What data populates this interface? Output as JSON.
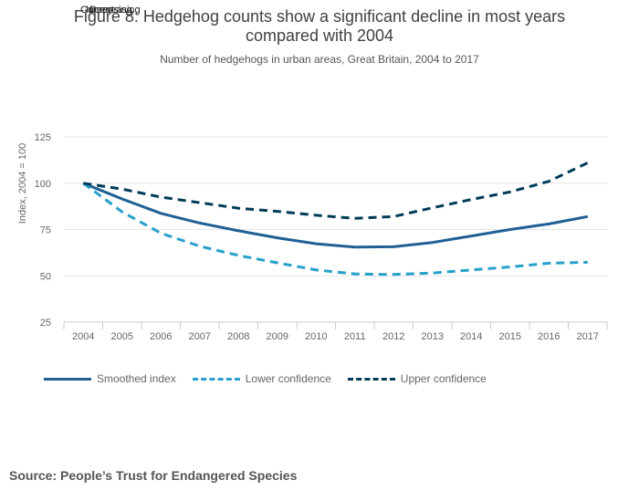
{
  "overlay_texts": [
    "Current",
    "Increasing",
    "Decreasing"
  ],
  "header": {
    "title_line1": "Figure 8: Hedgehog counts show a significant decline in most years",
    "title_line2": "compared with 2004",
    "subtitle": "Number of hedgehogs in urban areas, Great Britain, 2004 to 2017"
  },
  "chart_data": {
    "type": "line",
    "ylabel": "Index, 2004 = 100",
    "xlabel": "",
    "ylim": [
      25,
      125
    ],
    "yticks": [
      25,
      50,
      75,
      100,
      125
    ],
    "x": [
      "2004",
      "2005",
      "2006",
      "2007",
      "2008",
      "2009",
      "2010",
      "2011",
      "2012",
      "2013",
      "2014",
      "2015",
      "2016",
      "2017"
    ],
    "grid": true,
    "legend_position": "bottom",
    "series": [
      {
        "name": "Smoothed index",
        "color": "#206095",
        "style": "solid",
        "values": [
          100,
          91.5,
          83.7,
          78.5,
          74.3,
          70.5,
          67.3,
          65.5,
          65.7,
          68.0,
          71.5,
          75.0,
          78.0,
          82.0
        ]
      },
      {
        "name": "Lower confidence",
        "color": "#27a0cc",
        "style": "dashed",
        "values": [
          100,
          84.5,
          73.0,
          66.0,
          61.0,
          57.0,
          53.2,
          51.0,
          50.7,
          51.5,
          53.2,
          54.8,
          56.8,
          57.3
        ]
      },
      {
        "name": "Upper confidence",
        "color": "#003c57",
        "style": "dashed",
        "values": [
          100,
          96.8,
          92.5,
          89.5,
          86.5,
          84.8,
          82.7,
          81.0,
          82.0,
          86.7,
          91.2,
          95.3,
          101.0,
          111.0
        ]
      }
    ]
  },
  "source": "Source: People’s Trust for Endangered Species"
}
